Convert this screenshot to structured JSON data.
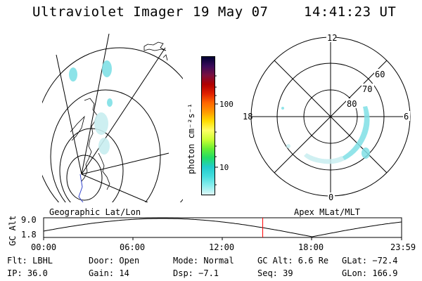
{
  "header": {
    "title": "Ultraviolet Imager",
    "date": "19 May 07",
    "time": "14:41:23 UT"
  },
  "colorbar": {
    "label": "photon cm⁻²s⁻¹",
    "ticks": [
      "100",
      "10"
    ],
    "colors": [
      "#000033",
      "#3a0a5a",
      "#7a1040",
      "#b00000",
      "#e02000",
      "#ff6600",
      "#ff9900",
      "#ffdd00",
      "#ffff66",
      "#ccff33",
      "#66ee33",
      "#22dd66",
      "#22cccc",
      "#44dddd",
      "#88eeee",
      "#ddf6f6"
    ]
  },
  "polar_plot": {
    "mlt_labels": {
      "top": "12",
      "left": "18",
      "right": "6",
      "bottom": "0"
    },
    "lat_labels": [
      "60",
      "70",
      "80"
    ]
  },
  "timeline": {
    "ylabel": "GC Alt",
    "yticks": [
      "9.0",
      "1.8"
    ],
    "left_caption": "Geographic Lat/Lon",
    "right_caption": "Apex MLat/MLT",
    "xticks": [
      "00:00",
      "06:00",
      "12:00",
      "18:00",
      "23:59"
    ],
    "marker_time_hours": 14.69,
    "marker_color": "#ff0000"
  },
  "info": {
    "row1": [
      "Flt: LBHL",
      "Door: Open",
      "Mode: Normal",
      "GC Alt: 6.6 Re",
      "GLat: −72.4"
    ],
    "row2": [
      "IP: 36.0",
      "Gain: 14",
      "Dsp:   −7.1",
      "Seq: 39",
      "GLon: 166.9"
    ]
  },
  "colors": {
    "aurora": "#7fe0e6",
    "aurora_dim": "#c8eef0",
    "coast_blue": "#3344cc"
  }
}
